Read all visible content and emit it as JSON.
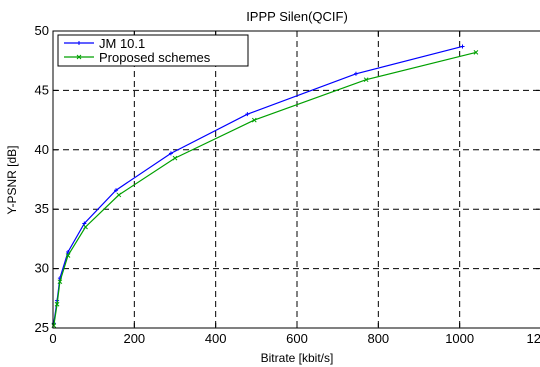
{
  "chart_data": {
    "type": "line",
    "title": "IPPP Silen(QCIF)",
    "xlabel": "Bitrate [kbit/s]",
    "ylabel": "Y-PSNR [dB]",
    "xlim": [
      0,
      1200
    ],
    "ylim": [
      25,
      50
    ],
    "xticks": [
      0,
      200,
      400,
      600,
      800,
      1000,
      1200
    ],
    "yticks": [
      25,
      30,
      35,
      40,
      45,
      50
    ],
    "grid": true,
    "legend_position": "top-left",
    "series": [
      {
        "name": "JM 10.1",
        "color": "#0000ff",
        "marker": "plus",
        "points": [
          [
            2,
            25.4
          ],
          [
            10,
            27.3
          ],
          [
            17,
            29.2
          ],
          [
            37,
            31.4
          ],
          [
            77,
            33.8
          ],
          [
            155,
            36.6
          ],
          [
            290,
            39.7
          ],
          [
            478,
            43.0
          ],
          [
            745,
            46.4
          ],
          [
            1007,
            48.7
          ]
        ]
      },
      {
        "name": "Proposed schemes",
        "color": "#00a000",
        "marker": "x",
        "points": [
          [
            2,
            25.2
          ],
          [
            10,
            27.0
          ],
          [
            17,
            28.9
          ],
          [
            37,
            31.1
          ],
          [
            80,
            33.5
          ],
          [
            162,
            36.2
          ],
          [
            300,
            39.3
          ],
          [
            495,
            42.5
          ],
          [
            770,
            45.9
          ],
          [
            1040,
            48.2
          ]
        ]
      }
    ]
  }
}
